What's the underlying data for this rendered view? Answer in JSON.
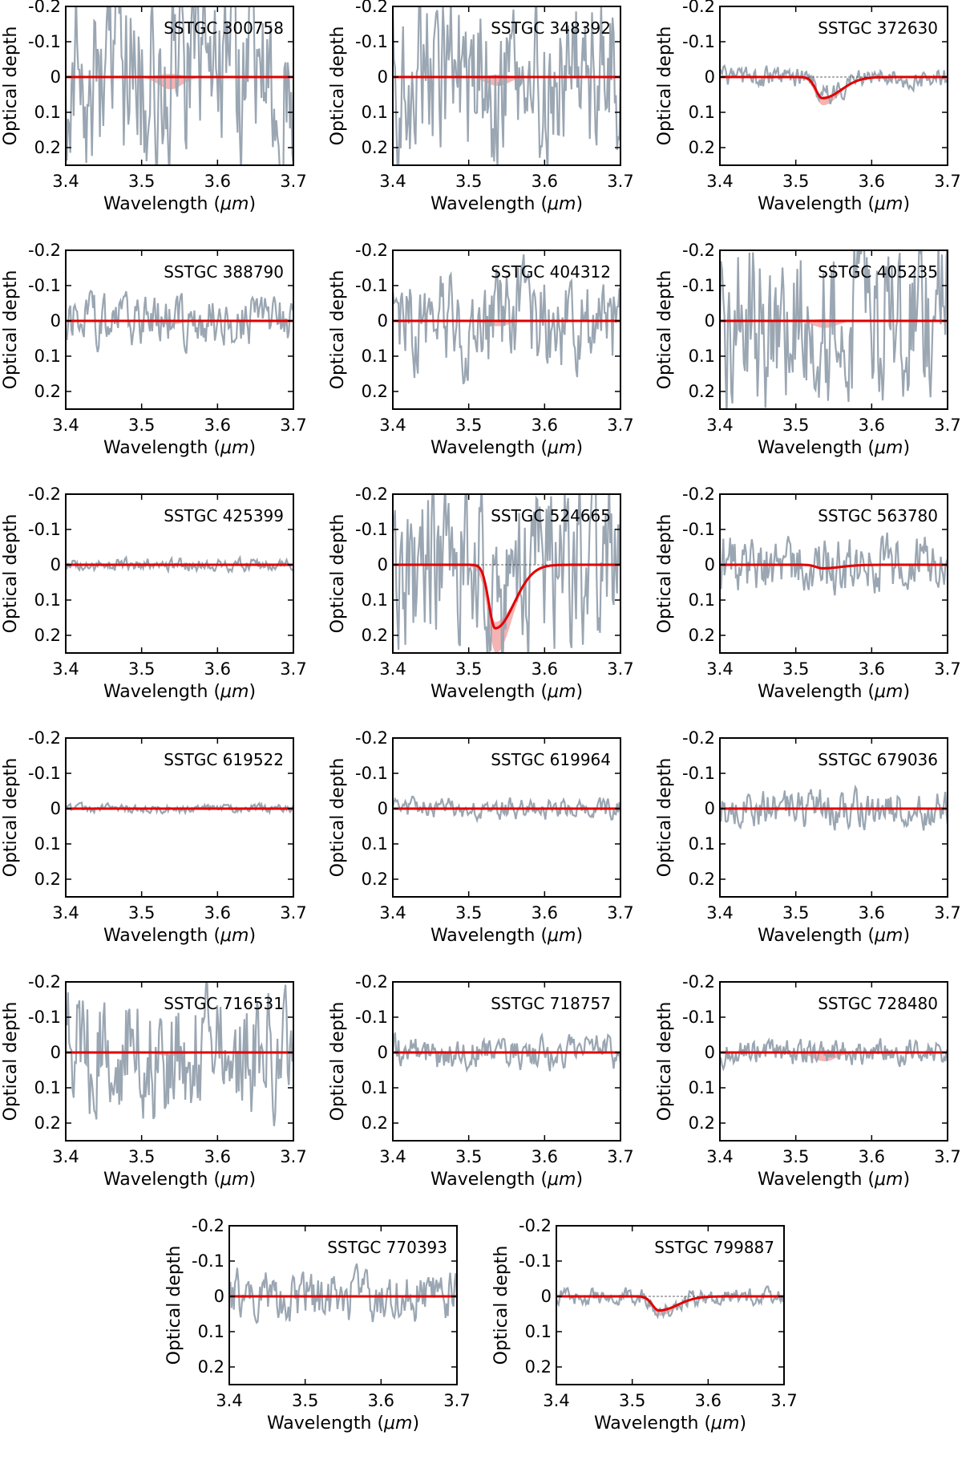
{
  "chart_data": {
    "type": "line",
    "shared": {
      "xlabel_prefix": "Wavelength (",
      "xlabel_unit": "μm",
      "xlabel_suffix": ")",
      "ylabel": "Optical depth",
      "xlim": [
        3.4,
        3.7
      ],
      "ylim": [
        -0.2,
        0.25
      ],
      "xticks": [
        3.4,
        3.5,
        3.6,
        3.7
      ],
      "xtick_labels": [
        "3.4",
        "3.5",
        "3.6",
        "3.7"
      ],
      "yticks": [
        -0.2,
        -0.1,
        0,
        0.1,
        0.2
      ],
      "ytick_labels": [
        "-0.2",
        "-0.1",
        "0",
        "0.1",
        "0.2"
      ],
      "y_inverted": true,
      "colors": {
        "observed": "#9aa6b2",
        "fit": "#e00000",
        "uncertainty_band": "#f4a6a6",
        "baseline": "#333333"
      }
    },
    "panels": [
      {
        "title": "SSTGC 300758",
        "noise": 0.22,
        "peak": 0.0,
        "band": 0.035,
        "zero_line": false
      },
      {
        "title": "SSTGC 348392",
        "noise": 0.2,
        "peak": 0.0,
        "band": 0.025,
        "zero_line": false
      },
      {
        "title": "SSTGC 372630",
        "noise": 0.025,
        "peak": 0.06,
        "band": 0.02,
        "zero_line": true
      },
      {
        "title": "SSTGC 388790",
        "noise": 0.06,
        "peak": 0.0,
        "band": 0.01,
        "zero_line": false
      },
      {
        "title": "SSTGC 404312",
        "noise": 0.12,
        "peak": 0.0,
        "band": 0.015,
        "zero_line": false
      },
      {
        "title": "SSTGC 405235",
        "noise": 0.2,
        "peak": 0.0,
        "band": 0.02,
        "zero_line": false
      },
      {
        "title": "SSTGC 425399",
        "noise": 0.015,
        "peak": 0.0,
        "band": 0.0,
        "zero_line": false
      },
      {
        "title": "SSTGC 524665",
        "noise": 0.2,
        "peak": 0.18,
        "band": 0.07,
        "zero_line": true
      },
      {
        "title": "SSTGC 563780",
        "noise": 0.07,
        "peak": 0.01,
        "band": 0.005,
        "zero_line": false
      },
      {
        "title": "SSTGC 619522",
        "noise": 0.01,
        "peak": 0.0,
        "band": 0.0,
        "zero_line": false
      },
      {
        "title": "SSTGC 619964",
        "noise": 0.025,
        "peak": 0.0,
        "band": 0.0,
        "zero_line": false
      },
      {
        "title": "SSTGC 679036",
        "noise": 0.045,
        "peak": 0.0,
        "band": 0.0,
        "zero_line": false
      },
      {
        "title": "SSTGC 716531",
        "noise": 0.15,
        "peak": 0.0,
        "band": 0.01,
        "zero_line": false
      },
      {
        "title": "SSTGC 718757",
        "noise": 0.04,
        "peak": 0.0,
        "band": 0.0,
        "zero_line": false
      },
      {
        "title": "SSTGC 728480",
        "noise": 0.03,
        "peak": 0.0,
        "band": 0.025,
        "zero_line": false
      },
      {
        "title": "SSTGC 770393",
        "noise": 0.06,
        "peak": 0.0,
        "band": 0.0,
        "zero_line": false
      },
      {
        "title": "SSTGC 799887",
        "noise": 0.02,
        "peak": 0.04,
        "band": 0.015,
        "zero_line": true
      }
    ]
  }
}
